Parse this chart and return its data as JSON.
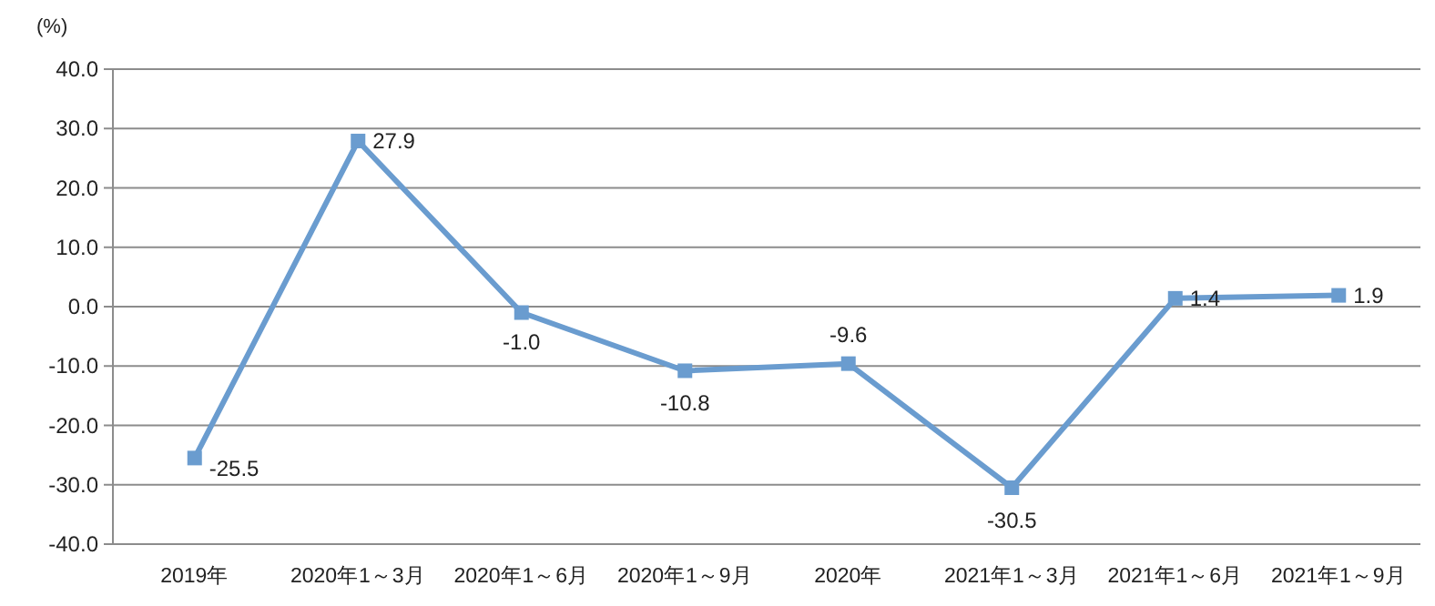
{
  "chart_data": {
    "type": "line",
    "ylabel": "(%)",
    "categories": [
      "2019年",
      "2020年1～3月",
      "2020年1～6月",
      "2020年1～9月",
      "2020年",
      "2021年1～3月",
      "2021年1～6月",
      "2021年1～9月"
    ],
    "series": [
      {
        "color": "#6a9ccf",
        "values": [
          -25.5,
          27.9,
          -1.0,
          -10.8,
          -9.6,
          -30.5,
          1.4,
          1.9
        ],
        "value_labels": [
          "-25.5",
          "27.9",
          "-1.0",
          "-10.8",
          "-9.6",
          "-30.5",
          "1.4",
          "1.9"
        ]
      }
    ],
    "ylim": [
      -40,
      40
    ],
    "yticks": [
      {
        "value": -40,
        "label": "-40.0"
      },
      {
        "value": -30,
        "label": "-30.0"
      },
      {
        "value": -20,
        "label": "-20.0"
      },
      {
        "value": -10,
        "label": "-10.0"
      },
      {
        "value": 0,
        "label": "0.0"
      },
      {
        "value": 10,
        "label": "10.0"
      },
      {
        "value": 20,
        "label": "20.0"
      },
      {
        "value": 30,
        "label": "30.0"
      },
      {
        "value": 40,
        "label": "40.0"
      }
    ],
    "grid": "y",
    "marker": "square",
    "line_style": "solid"
  }
}
